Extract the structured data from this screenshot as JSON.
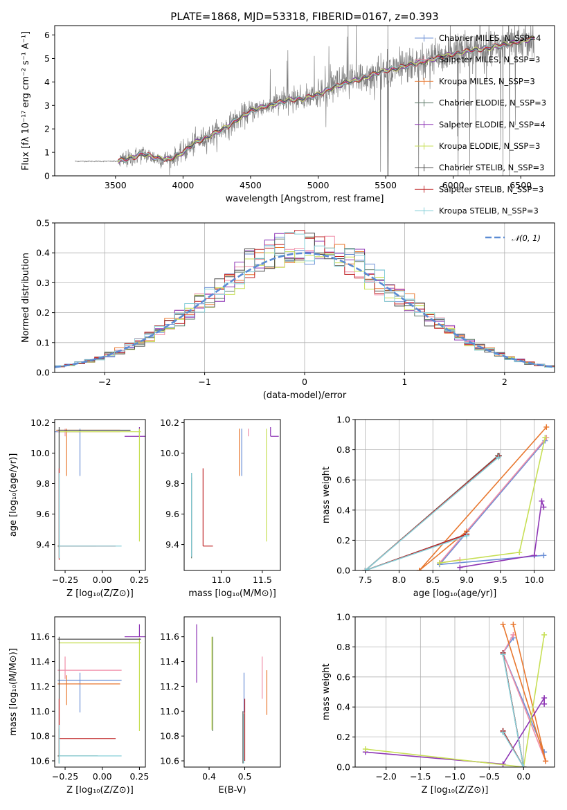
{
  "title": "PLATE=1868, MJD=53318, FIBERID=0167, z=0.393",
  "colors": {
    "Chabrier MILES": "#6b8fd6",
    "Salpeter MILES": "#f08ea8",
    "Kroupa MILES": "#e8772e",
    "Chabrier ELODIE": "#5e7a68",
    "Salpeter ELODIE": "#8e36b5",
    "Kroupa ELODIE": "#c7df55",
    "Chabrier STELIB": "#4a4a4a",
    "Salpeter STELIB": "#c0282a",
    "Kroupa STELIB": "#86cfd8",
    "data": "#808080",
    "normal": "#5b8bd3",
    "grid": "#b0b0b0"
  },
  "chart_data": [
    {
      "id": "spectrum",
      "type": "line",
      "title": "PLATE=1868, MJD=53318, FIBERID=0167, z=0.393",
      "xlabel": "wavelength [Angstrom, rest frame]",
      "ylabel": "Flux [fλ 10⁻¹⁷ erg cm⁻² s⁻¹ A⁻¹]",
      "xlim": [
        3050,
        6750
      ],
      "ylim": [
        0,
        6.4
      ],
      "xticks": [
        3500,
        4000,
        4500,
        5000,
        5500,
        6000,
        6500
      ],
      "yticks": [
        0,
        1,
        2,
        3,
        4,
        5,
        6
      ],
      "grid": false,
      "legend_position": "upper-right",
      "data_x_range": [
        3200,
        6600
      ],
      "model_x_range": [
        3520,
        6600
      ],
      "series": [
        {
          "name": "Chabrier MILES, N_SSP=4"
        },
        {
          "name": "Salpeter MILES, N_SSP=3"
        },
        {
          "name": "Kroupa MILES, N_SSP=3"
        },
        {
          "name": "Chabrier ELODIE, N_SSP=3"
        },
        {
          "name": "Salpeter ELODIE, N_SSP=4"
        },
        {
          "name": "Kroupa ELODIE, N_SSP=3"
        },
        {
          "name": "Chabrier STELIB, N_SSP=3"
        },
        {
          "name": "Salpeter STELIB, N_SSP=3"
        },
        {
          "name": "Kroupa STELIB, N_SSP=3"
        }
      ],
      "continuum": {
        "x": [
          3200,
          3520,
          3600,
          3700,
          3800,
          3900,
          4000,
          4100,
          4200,
          4300,
          4400,
          4500,
          4600,
          4700,
          4800,
          4900,
          5000,
          5100,
          5200,
          5300,
          5400,
          5500,
          5600,
          5700,
          5800,
          5900,
          6000,
          6100,
          6200,
          6300,
          6400,
          6500,
          6600
        ],
        "y": [
          0.62,
          0.62,
          0.72,
          0.95,
          0.75,
          0.7,
          1.0,
          1.45,
          1.7,
          2.0,
          2.4,
          2.75,
          2.95,
          3.1,
          3.25,
          3.3,
          3.45,
          3.75,
          3.95,
          4.1,
          4.3,
          4.5,
          4.6,
          4.75,
          4.9,
          5.05,
          5.2,
          5.3,
          5.4,
          5.5,
          5.6,
          5.75,
          5.85
        ]
      }
    },
    {
      "id": "residuals",
      "type": "histogram",
      "xlabel": "(data-model)/error",
      "ylabel": "Normed distribution",
      "xlim": [
        -2.5,
        2.5
      ],
      "ylim": [
        0,
        0.5
      ],
      "xticks": [
        -2,
        -1,
        0,
        1,
        2
      ],
      "yticks": [
        0.0,
        0.1,
        0.2,
        0.3,
        0.4,
        0.5
      ],
      "grid": true,
      "legend_position": "upper-right",
      "legend_label": "𝒩(0, 1)",
      "bin_width": 0.1,
      "reference_curve": "normal(0,1) density"
    },
    {
      "id": "age-vs-Z",
      "type": "errorbar",
      "xlabel": "Z [log₁₀(Z/Z⊙)]",
      "ylabel": "age  [log₁₀(age/yr)]",
      "xlim": [
        -0.32,
        0.29
      ],
      "ylim": [
        9.23,
        10.22
      ],
      "xticks": [
        -0.25,
        0.0,
        0.25
      ],
      "yticks": [
        9.4,
        9.6,
        9.8,
        10.0,
        10.2
      ],
      "grid": false,
      "points": [
        {
          "s": "Chabrier MILES",
          "x": -0.15,
          "y": 10.14,
          "xe": [
            0.45,
            0.0
          ],
          "ye": [
            0.29,
            0.02
          ]
        },
        {
          "s": "Salpeter MILES",
          "x": -0.25,
          "y": 10.14,
          "xe": [
            0.05,
            0.37
          ],
          "ye": [
            0.03,
            0.02
          ]
        },
        {
          "s": "Kroupa MILES",
          "x": -0.24,
          "y": 10.15,
          "xe": [
            0.07,
            0.36
          ],
          "ye": [
            0.3,
            0.01
          ]
        },
        {
          "s": "Chabrier ELODIE",
          "x": -0.29,
          "y": 9.39,
          "xe": [
            0.01,
            0.25
          ],
          "ye": [
            0.08,
            0.75
          ]
        },
        {
          "s": "Salpeter ELODIE",
          "x": 0.25,
          "y": 10.11,
          "xe": [
            0.1,
            0.04
          ],
          "ye": [
            0.0,
            0.06
          ]
        },
        {
          "s": "Kroupa ELODIE",
          "x": 0.25,
          "y": 10.14,
          "xe": [
            0.54,
            0.01
          ],
          "ye": [
            0.72,
            0.02
          ]
        },
        {
          "s": "Chabrier STELIB",
          "x": -0.29,
          "y": 10.15,
          "xe": [
            0.01,
            0.48
          ],
          "ye": [
            0.77,
            0.02
          ]
        },
        {
          "s": "Salpeter STELIB",
          "x": -0.29,
          "y": 9.39,
          "xe": [
            0.0,
            0.38
          ],
          "ye": [
            0.09,
            0.51
          ]
        },
        {
          "s": "Kroupa STELIB",
          "x": -0.29,
          "y": 9.39,
          "xe": [
            0.0,
            0.42
          ],
          "ye": [
            0.08,
            0.48
          ]
        }
      ]
    },
    {
      "id": "age-vs-mass",
      "type": "errorbar",
      "xlabel": "mass [log₁₀(M/M⊙)]",
      "ylabel": "",
      "xlim": [
        10.55,
        11.72
      ],
      "ylim": [
        9.23,
        10.22
      ],
      "xticks": [
        11.0,
        11.5
      ],
      "yticks": [
        9.4,
        9.6,
        9.8,
        10.0,
        10.2
      ],
      "grid": false,
      "points": [
        {
          "s": "Chabrier MILES",
          "x": 11.25,
          "y": 10.14,
          "xe": [
            0.0,
            0.0
          ],
          "ye": [
            0.29,
            0.02
          ]
        },
        {
          "s": "Salpeter MILES",
          "x": 11.33,
          "y": 10.14,
          "xe": [
            0.0,
            0.0
          ],
          "ye": [
            0.03,
            0.02
          ]
        },
        {
          "s": "Kroupa MILES",
          "x": 11.22,
          "y": 10.15,
          "xe": [
            0.0,
            0.0
          ],
          "ye": [
            0.3,
            0.01
          ]
        },
        {
          "s": "Chabrier ELODIE",
          "x": 10.64,
          "y": 9.39,
          "xe": [
            0.0,
            0.0
          ],
          "ye": [
            0.08,
            0.48
          ]
        },
        {
          "s": "Salpeter ELODIE",
          "x": 11.6,
          "y": 10.11,
          "xe": [
            0.0,
            0.1
          ],
          "ye": [
            0.0,
            0.06
          ]
        },
        {
          "s": "Kroupa ELODIE",
          "x": 11.55,
          "y": 10.14,
          "xe": [
            0.0,
            0.0
          ],
          "ye": [
            0.72,
            0.02
          ]
        },
        {
          "s": "Chabrier STELIB",
          "x": 10.64,
          "y": 9.39,
          "xe": [
            0.0,
            0.0
          ],
          "ye": [
            0.07,
            0.45
          ]
        },
        {
          "s": "Salpeter STELIB",
          "x": 10.78,
          "y": 9.39,
          "xe": [
            0.0,
            0.12
          ],
          "ye": [
            0.0,
            0.51
          ]
        },
        {
          "s": "Kroupa STELIB",
          "x": 10.64,
          "y": 9.39,
          "xe": [
            0.0,
            0.0
          ],
          "ye": [
            0.07,
            0.48
          ]
        }
      ]
    },
    {
      "id": "mass-weight-vs-age",
      "type": "line",
      "xlabel": "age  [log₁₀(age/yr)]",
      "ylabel": "mass weight",
      "xlim": [
        7.35,
        10.3
      ],
      "ylim": [
        0,
        1.0
      ],
      "xticks": [
        7.5,
        8.0,
        8.5,
        9.0,
        9.5,
        10.0
      ],
      "yticks": [
        0.0,
        0.2,
        0.4,
        0.6,
        0.8,
        1.0
      ],
      "grid": true,
      "series": [
        {
          "s": "Chabrier MILES",
          "x": [
            10.16,
            8.6,
            10.14
          ],
          "y": [
            0.86,
            0.04,
            0.1
          ]
        },
        {
          "s": "Salpeter MILES",
          "x": [
            10.18,
            8.6,
            8.9
          ],
          "y": [
            0.88,
            0.05,
            0.07
          ]
        },
        {
          "s": "Kroupa MILES",
          "x": [
            10.18,
            8.3,
            9.0
          ],
          "y": [
            0.95,
            0.0,
            0.26
          ]
        },
        {
          "s": "Chabrier ELODIE",
          "x": [
            9.46,
            7.5,
            9.0
          ],
          "y": [
            0.76,
            0.0,
            0.24
          ]
        },
        {
          "s": "Salpeter ELODIE",
          "x": [
            10.14,
            10.11,
            10.0,
            8.9
          ],
          "y": [
            0.42,
            0.46,
            0.1,
            0.02
          ]
        },
        {
          "s": "Kroupa ELODIE",
          "x": [
            10.16,
            9.78,
            8.6
          ],
          "y": [
            0.88,
            0.12,
            0.05
          ]
        },
        {
          "s": "Chabrier STELIB",
          "x": [
            9.48,
            7.5,
            9.0
          ],
          "y": [
            0.76,
            0.0,
            0.24
          ]
        },
        {
          "s": "Salpeter STELIB",
          "x": [
            9.47,
            7.5,
            9.0
          ],
          "y": [
            0.76,
            0.0,
            0.24
          ]
        },
        {
          "s": "Kroupa STELIB",
          "x": [
            9.47,
            7.5,
            9.0
          ],
          "y": [
            0.75,
            0.0,
            0.23
          ]
        }
      ]
    },
    {
      "id": "mass-vs-Z",
      "type": "errorbar",
      "xlabel": "Z [log₁₀(Z/Z⊙)]",
      "ylabel": "mass [log₁₀(M/M⊙)]",
      "xlim": [
        -0.32,
        0.29
      ],
      "ylim": [
        10.55,
        11.76
      ],
      "xticks": [
        -0.25,
        0.0,
        0.25
      ],
      "yticks": [
        10.6,
        10.8,
        11.0,
        11.2,
        11.4,
        11.6
      ],
      "grid": false,
      "points": [
        {
          "s": "Chabrier MILES",
          "x": -0.15,
          "y": 11.25,
          "xe": [
            0.15,
            0.28
          ],
          "ye": [
            0.26,
            0.06
          ]
        },
        {
          "s": "Salpeter MILES",
          "x": -0.25,
          "y": 11.33,
          "xe": [
            0.05,
            0.38
          ],
          "ye": [
            0.07,
            0.11
          ]
        },
        {
          "s": "Kroupa MILES",
          "x": -0.24,
          "y": 11.22,
          "xe": [
            0.06,
            0.36
          ],
          "ye": [
            0.17,
            0.07
          ]
        },
        {
          "s": "Chabrier ELODIE",
          "x": -0.29,
          "y": 10.64,
          "xe": [
            0.01,
            0.26
          ],
          "ye": [
            0.06,
            0.22
          ]
        },
        {
          "s": "Salpeter ELODIE",
          "x": 0.25,
          "y": 11.6,
          "xe": [
            0.1,
            0.04
          ],
          "ye": [
            0.0,
            0.1
          ]
        },
        {
          "s": "Kroupa ELODIE",
          "x": 0.25,
          "y": 11.55,
          "xe": [
            0.54,
            0.01
          ],
          "ye": [
            0.71,
            0.04
          ]
        },
        {
          "s": "Chabrier STELIB",
          "x": -0.29,
          "y": 11.58,
          "xe": [
            0.01,
            0.55
          ],
          "ye": [
            1.0,
            0.02
          ]
        },
        {
          "s": "Salpeter STELIB",
          "x": -0.29,
          "y": 10.78,
          "xe": [
            0.0,
            0.38
          ],
          "ye": [
            0.15,
            0.32
          ]
        },
        {
          "s": "Kroupa STELIB",
          "x": -0.29,
          "y": 10.64,
          "xe": [
            0.0,
            0.42
          ],
          "ye": [
            0.06,
            0.25
          ]
        }
      ]
    },
    {
      "id": "mass-vs-EBV",
      "type": "errorbar",
      "xlabel": "E(B-V)",
      "ylabel": "",
      "xlim": [
        0.33,
        0.6
      ],
      "ylim": [
        10.55,
        11.76
      ],
      "xticks": [
        0.4,
        0.5
      ],
      "yticks": [
        10.6,
        10.8,
        11.0,
        11.2,
        11.4,
        11.6
      ],
      "grid": false,
      "points": [
        {
          "s": "Chabrier MILES",
          "x": 0.498,
          "y": 11.25,
          "xe": [
            0.0,
            0.0
          ],
          "ye": [
            0.26,
            0.06
          ]
        },
        {
          "s": "Salpeter MILES",
          "x": 0.549,
          "y": 11.3,
          "xe": [
            0.0,
            0.0
          ],
          "ye": [
            0.2,
            0.14
          ]
        },
        {
          "s": "Kroupa MILES",
          "x": 0.562,
          "y": 11.22,
          "xe": [
            0.0,
            0.0
          ],
          "ye": [
            0.25,
            0.11
          ]
        },
        {
          "s": "Chabrier ELODIE",
          "x": 0.41,
          "y": 11.3,
          "xe": [
            0.0,
            0.0
          ],
          "ye": [
            0.46,
            0.3
          ]
        },
        {
          "s": "Salpeter ELODIE",
          "x": 0.365,
          "y": 11.45,
          "xe": [
            0.0,
            0.0
          ],
          "ye": [
            0.22,
            0.25
          ]
        },
        {
          "s": "Kroupa ELODIE",
          "x": 0.408,
          "y": 11.2,
          "xe": [
            0.0,
            0.0
          ],
          "ye": [
            0.35,
            0.4
          ]
        },
        {
          "s": "Chabrier STELIB",
          "x": 0.495,
          "y": 10.8,
          "xe": [
            0.0,
            0.0
          ],
          "ye": [
            0.22,
            0.2
          ]
        },
        {
          "s": "Salpeter STELIB",
          "x": 0.5,
          "y": 10.9,
          "xe": [
            0.0,
            0.0
          ],
          "ye": [
            0.3,
            0.2
          ]
        },
        {
          "s": "Kroupa STELIB",
          "x": 0.497,
          "y": 10.78,
          "xe": [
            0.0,
            0.0
          ],
          "ye": [
            0.2,
            0.2
          ]
        }
      ]
    },
    {
      "id": "mass-weight-vs-Z",
      "type": "line",
      "xlabel": "Z [log₁₀(Z/Z⊙)]",
      "ylabel": "mass weight",
      "xlim": [
        -2.45,
        0.45
      ],
      "ylim": [
        0,
        1.0
      ],
      "xticks": [
        -2.0,
        -1.5,
        -1.0,
        -0.5,
        0.0
      ],
      "yticks": [
        0.0,
        0.2,
        0.4,
        0.6,
        0.8,
        1.0
      ],
      "grid": true,
      "series": [
        {
          "s": "Chabrier MILES",
          "x": [
            -0.15,
            -0.3,
            0.3
          ],
          "y": [
            0.86,
            0.76,
            0.1
          ]
        },
        {
          "s": "Salpeter MILES",
          "x": [
            -0.15,
            -0.3,
            0.32
          ],
          "y": [
            0.88,
            0.76,
            0.04
          ]
        },
        {
          "s": "Kroupa MILES",
          "x": [
            -0.15,
            0.32,
            -0.3
          ],
          "y": [
            0.95,
            0.04,
            0.95
          ]
        },
        {
          "s": "Chabrier ELODIE",
          "x": [
            -0.3,
            0.0,
            -0.3
          ],
          "y": [
            0.76,
            0.0,
            0.24
          ]
        },
        {
          "s": "Salpeter ELODIE",
          "x": [
            0.3,
            0.3,
            -0.3,
            -2.3
          ],
          "y": [
            0.42,
            0.46,
            0.02,
            0.1
          ]
        },
        {
          "s": "Kroupa ELODIE",
          "x": [
            0.3,
            0.0,
            -2.3
          ],
          "y": [
            0.88,
            0.0,
            0.12
          ]
        },
        {
          "s": "Chabrier STELIB",
          "x": [
            -0.3,
            0.0,
            -0.3
          ],
          "y": [
            0.76,
            0.0,
            0.24
          ]
        },
        {
          "s": "Salpeter STELIB",
          "x": [
            -0.3,
            0.0,
            -0.3
          ],
          "y": [
            0.76,
            0.0,
            0.24
          ]
        },
        {
          "s": "Kroupa STELIB",
          "x": [
            -0.3,
            0.0,
            -0.3
          ],
          "y": [
            0.75,
            0.0,
            0.23
          ]
        }
      ]
    }
  ]
}
